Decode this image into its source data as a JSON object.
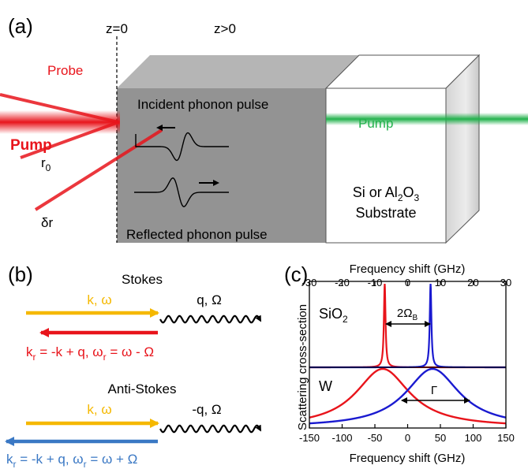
{
  "panel_a": {
    "label": "(a)",
    "z0_label": "z=0",
    "zpos_label": "z>0",
    "probe_label": "Probe",
    "pump_left_label": "Pump",
    "r0_main": "r",
    "r0_sub": "0",
    "dr_label": "δr",
    "incident_label": "Incident phonon pulse",
    "reflected_label": "Reflected phonon pulse",
    "pump_right_label": "Pump",
    "substrate_line1_a": "Si or Al",
    "substrate_sub1": "2",
    "substrate_line1_b": "O",
    "substrate_sub2": "3",
    "substrate_line2": "Substrate"
  },
  "panel_b": {
    "label": "(b)",
    "stokes_title": "Stokes",
    "stokes_in": "k, ω",
    "stokes_phonon": "q, Ω",
    "stokes_out_1": "k",
    "stokes_out_sub1": "r",
    "stokes_out_2": " = -k + q, ω",
    "stokes_out_sub2": "r",
    "stokes_out_3": " = ω - Ω",
    "antistokes_title": "Anti-Stokes",
    "antistokes_in": "k, ω",
    "antistokes_phonon": "-q, Ω",
    "antistokes_out_1": "k",
    "antistokes_out_sub1": "r",
    "antistokes_out_2": " = -k + q, ω",
    "antistokes_out_sub2": "r",
    "antistokes_out_3": " = ω + Ω"
  },
  "panel_c": {
    "label": "(c)",
    "top_axis_label": "Frequency shift (GHz)",
    "bottom_axis_label": "Frequency shift (GHz)",
    "y_label": "Scattering cross-section",
    "sio2_main": "SiO",
    "sio2_sub": "2",
    "w_label": "W",
    "omega_b_main": "2Ω",
    "omega_b_sub": "B",
    "gamma_label": "Γ"
  },
  "colors": {
    "red": "#e8141b",
    "blue": "#1a1ad0",
    "orange": "#f5b800",
    "steelblue": "#3a78c4",
    "green": "#22b14c",
    "film": "#939393",
    "film_top": "#b5b5b5"
  },
  "chart_data": [
    {
      "type": "line",
      "panel": "SiO2 (top axis)",
      "xlabel": "Frequency shift (GHz)",
      "xlim": [
        -30,
        30
      ],
      "xticks": [
        -30,
        -20,
        -10,
        0,
        10,
        20,
        30
      ],
      "series": [
        {
          "color": "red",
          "shape": "lorentzian",
          "center": -7,
          "hwhm": 0.3
        },
        {
          "color": "blue",
          "shape": "lorentzian",
          "center": 7,
          "hwhm": 0.3
        }
      ]
    },
    {
      "type": "line",
      "panel": "W (bottom axis)",
      "xlabel": "Frequency shift (GHz)",
      "ylabel": "Scattering cross-section",
      "xlim": [
        -150,
        150
      ],
      "xticks": [
        -150,
        -100,
        -50,
        0,
        50,
        100,
        150
      ],
      "series": [
        {
          "color": "red",
          "shape": "lorentzian",
          "center": -38,
          "hwhm": 50
        },
        {
          "color": "blue",
          "shape": "lorentzian",
          "center": 38,
          "hwhm": 50
        }
      ]
    }
  ]
}
